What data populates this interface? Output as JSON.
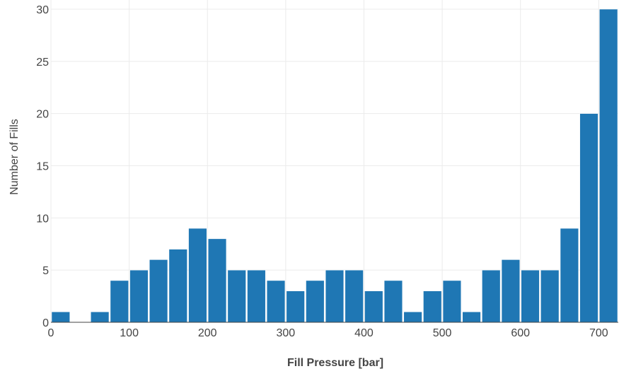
{
  "chart_data": {
    "type": "bar",
    "title": "",
    "xlabel": "Fill Pressure [bar]",
    "ylabel": "Number of Fills",
    "bin_width": 25,
    "bins": [
      {
        "x0": 0,
        "count": 1
      },
      {
        "x0": 25,
        "count": 0
      },
      {
        "x0": 50,
        "count": 1
      },
      {
        "x0": 75,
        "count": 4
      },
      {
        "x0": 100,
        "count": 5
      },
      {
        "x0": 125,
        "count": 6
      },
      {
        "x0": 150,
        "count": 7
      },
      {
        "x0": 175,
        "count": 9
      },
      {
        "x0": 200,
        "count": 8
      },
      {
        "x0": 225,
        "count": 5
      },
      {
        "x0": 250,
        "count": 5
      },
      {
        "x0": 275,
        "count": 4
      },
      {
        "x0": 300,
        "count": 3
      },
      {
        "x0": 325,
        "count": 4
      },
      {
        "x0": 350,
        "count": 5
      },
      {
        "x0": 375,
        "count": 5
      },
      {
        "x0": 400,
        "count": 3
      },
      {
        "x0": 425,
        "count": 4
      },
      {
        "x0": 450,
        "count": 1
      },
      {
        "x0": 475,
        "count": 3
      },
      {
        "x0": 500,
        "count": 4
      },
      {
        "x0": 525,
        "count": 1
      },
      {
        "x0": 550,
        "count": 5
      },
      {
        "x0": 575,
        "count": 6
      },
      {
        "x0": 600,
        "count": 5
      },
      {
        "x0": 625,
        "count": 5
      },
      {
        "x0": 650,
        "count": 9
      },
      {
        "x0": 675,
        "count": 20
      },
      {
        "x0": 700,
        "count": 30
      }
    ],
    "xlim": [
      0,
      725
    ],
    "ylim": [
      0,
      30
    ],
    "x_ticks": [
      0,
      100,
      200,
      300,
      400,
      500,
      600,
      700
    ],
    "y_ticks": [
      0,
      5,
      10,
      15,
      20,
      25,
      30
    ],
    "grid": true,
    "legend": "none",
    "colors": {
      "bar": "#1f77b4",
      "bar_edge": "#ffffff",
      "grid": "#ebebeb",
      "tick_text": "#444444",
      "axis_title": "#444444"
    }
  }
}
